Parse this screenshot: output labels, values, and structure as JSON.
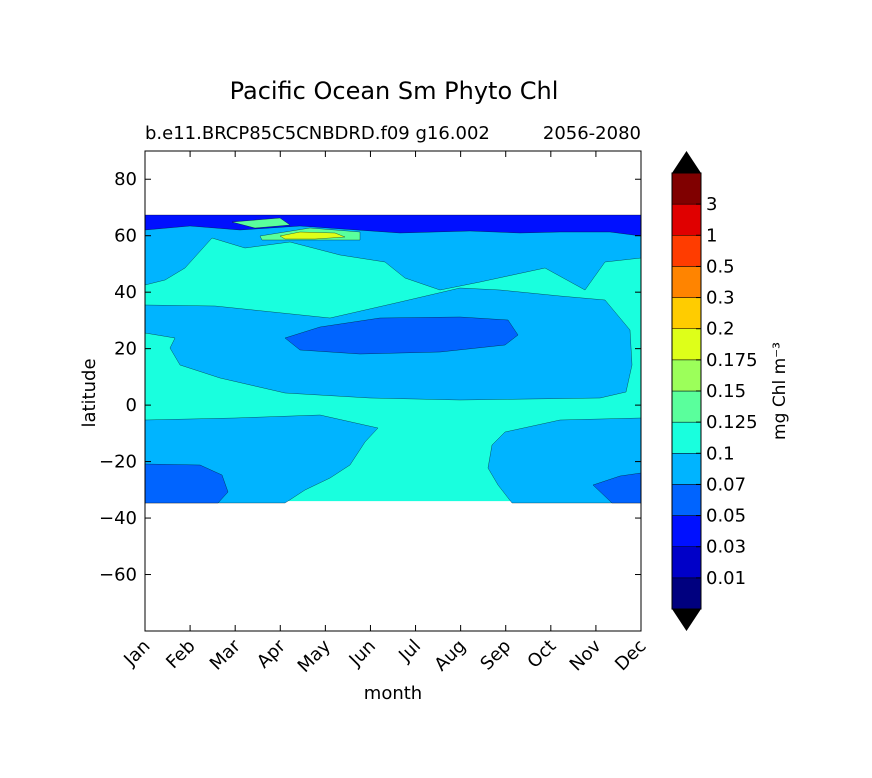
{
  "chart_data": {
    "type": "heatmap",
    "title": "Pacific Ocean Sm Phyto Chl",
    "subtitle_left": "b.e11.BRCP85C5CNBDRD.f09 g16.002",
    "subtitle_right": "2056-2080",
    "xlabel": "month",
    "ylabel": "latitude",
    "x_ticks": [
      "Jan",
      "Feb",
      "Mar",
      "Apr",
      "May",
      "Jun",
      "Jul",
      "Aug",
      "Sep",
      "Oct",
      "Nov",
      "Dec"
    ],
    "xlim": [
      0,
      11
    ],
    "ylim": [
      -80,
      90
    ],
    "y_ticks": [
      80,
      60,
      40,
      20,
      0,
      -20,
      -40,
      -60
    ],
    "y_tick_labels": [
      "80",
      "60",
      "40",
      "20",
      "0",
      "−20",
      "−40",
      "−60"
    ],
    "data_lat_range": [
      -34,
      67
    ],
    "colorbar": {
      "label": "mg Chl m⁻³",
      "extend": "both",
      "tick_labels": [
        "0.01",
        "0.03",
        "0.05",
        "0.07",
        "0.1",
        "0.125",
        "0.15",
        "0.175",
        "0.2",
        "0.3",
        "0.5",
        "1",
        "3"
      ],
      "colors": [
        "#00007f",
        "#0000c8",
        "#0010ff",
        "#0064ff",
        "#00b4ff",
        "#19ffde",
        "#5aff9c",
        "#9cff5a",
        "#deff19",
        "#ffcc00",
        "#ff8400",
        "#ff3c00",
        "#e00000",
        "#800000"
      ],
      "extend_colors": [
        "#000000",
        "#000000"
      ]
    },
    "field": {
      "background_level": 5,
      "regions": [
        {
          "level": 4,
          "desc": "high-latitude band",
          "lat_range": [
            46,
            64
          ]
        },
        {
          "level": 4,
          "desc": "north subtropical gyre",
          "lat_range": [
            2,
            38
          ]
        },
        {
          "level": 3,
          "desc": "gyre core Apr-Aug",
          "lat_range": [
            20,
            32
          ]
        },
        {
          "level": 4,
          "desc": "south subtropical Jan-Jul",
          "lat_range": [
            -34,
            -5
          ]
        },
        {
          "level": 4,
          "desc": "south subtropical Aug-Dec",
          "lat_range": [
            -34,
            -8
          ]
        },
        {
          "level": 3,
          "desc": "south edge Jan-Feb",
          "lat_range": [
            -34,
            -20
          ]
        },
        {
          "level": 3,
          "desc": "south edge Nov-Dec",
          "lat_range": [
            -34,
            -24
          ]
        },
        {
          "level": 2,
          "desc": "top edge band",
          "lat_range": [
            62,
            67
          ]
        },
        {
          "level": 6,
          "desc": "bloom band Mar-Jul",
          "lat_range": [
            58,
            65
          ]
        },
        {
          "level": 8,
          "desc": "spring bloom May",
          "lat_range": [
            60,
            61
          ]
        }
      ]
    }
  }
}
